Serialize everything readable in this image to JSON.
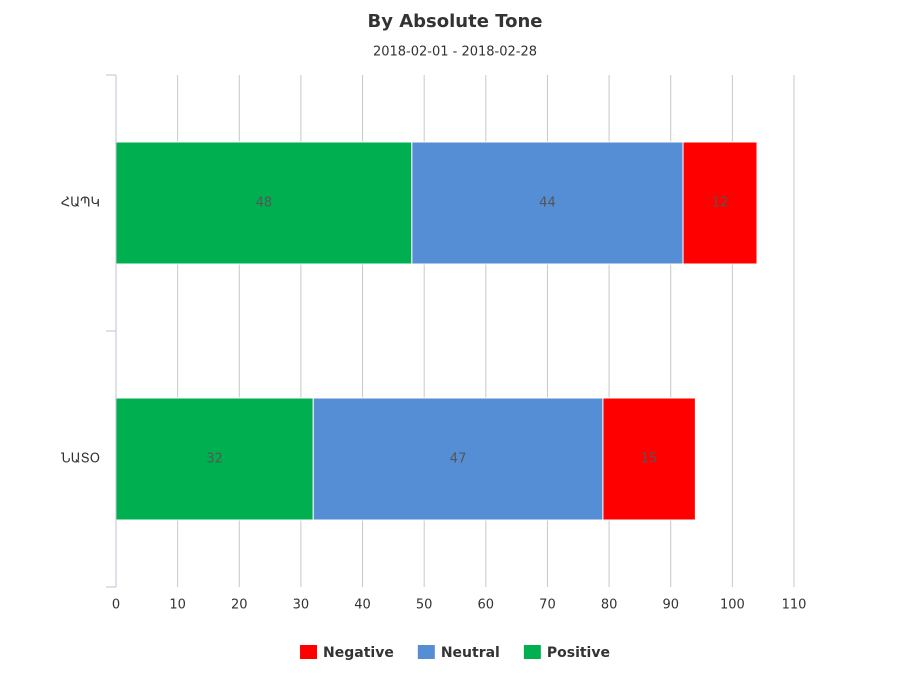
{
  "chart_data": {
    "type": "stacked-bar-horizontal",
    "title": "By Absolute Tone",
    "subtitle": "2018-02-01 - 2018-02-28",
    "categories": [
      "ՀԱՊԿ",
      "ՆԱՏՕ"
    ],
    "series": [
      {
        "name": "Negative",
        "color": "#ff0000",
        "values": [
          12,
          15
        ]
      },
      {
        "name": "Neutral",
        "color": "#558ed5",
        "values": [
          44,
          47
        ]
      },
      {
        "name": "Positive",
        "color": "#00b050",
        "values": [
          48,
          32
        ]
      }
    ],
    "xlim": [
      0,
      110
    ],
    "xticks": [
      0,
      10,
      20,
      30,
      40,
      50,
      60,
      70,
      80,
      90,
      100,
      110
    ],
    "grid": true,
    "legend": "bottom"
  }
}
